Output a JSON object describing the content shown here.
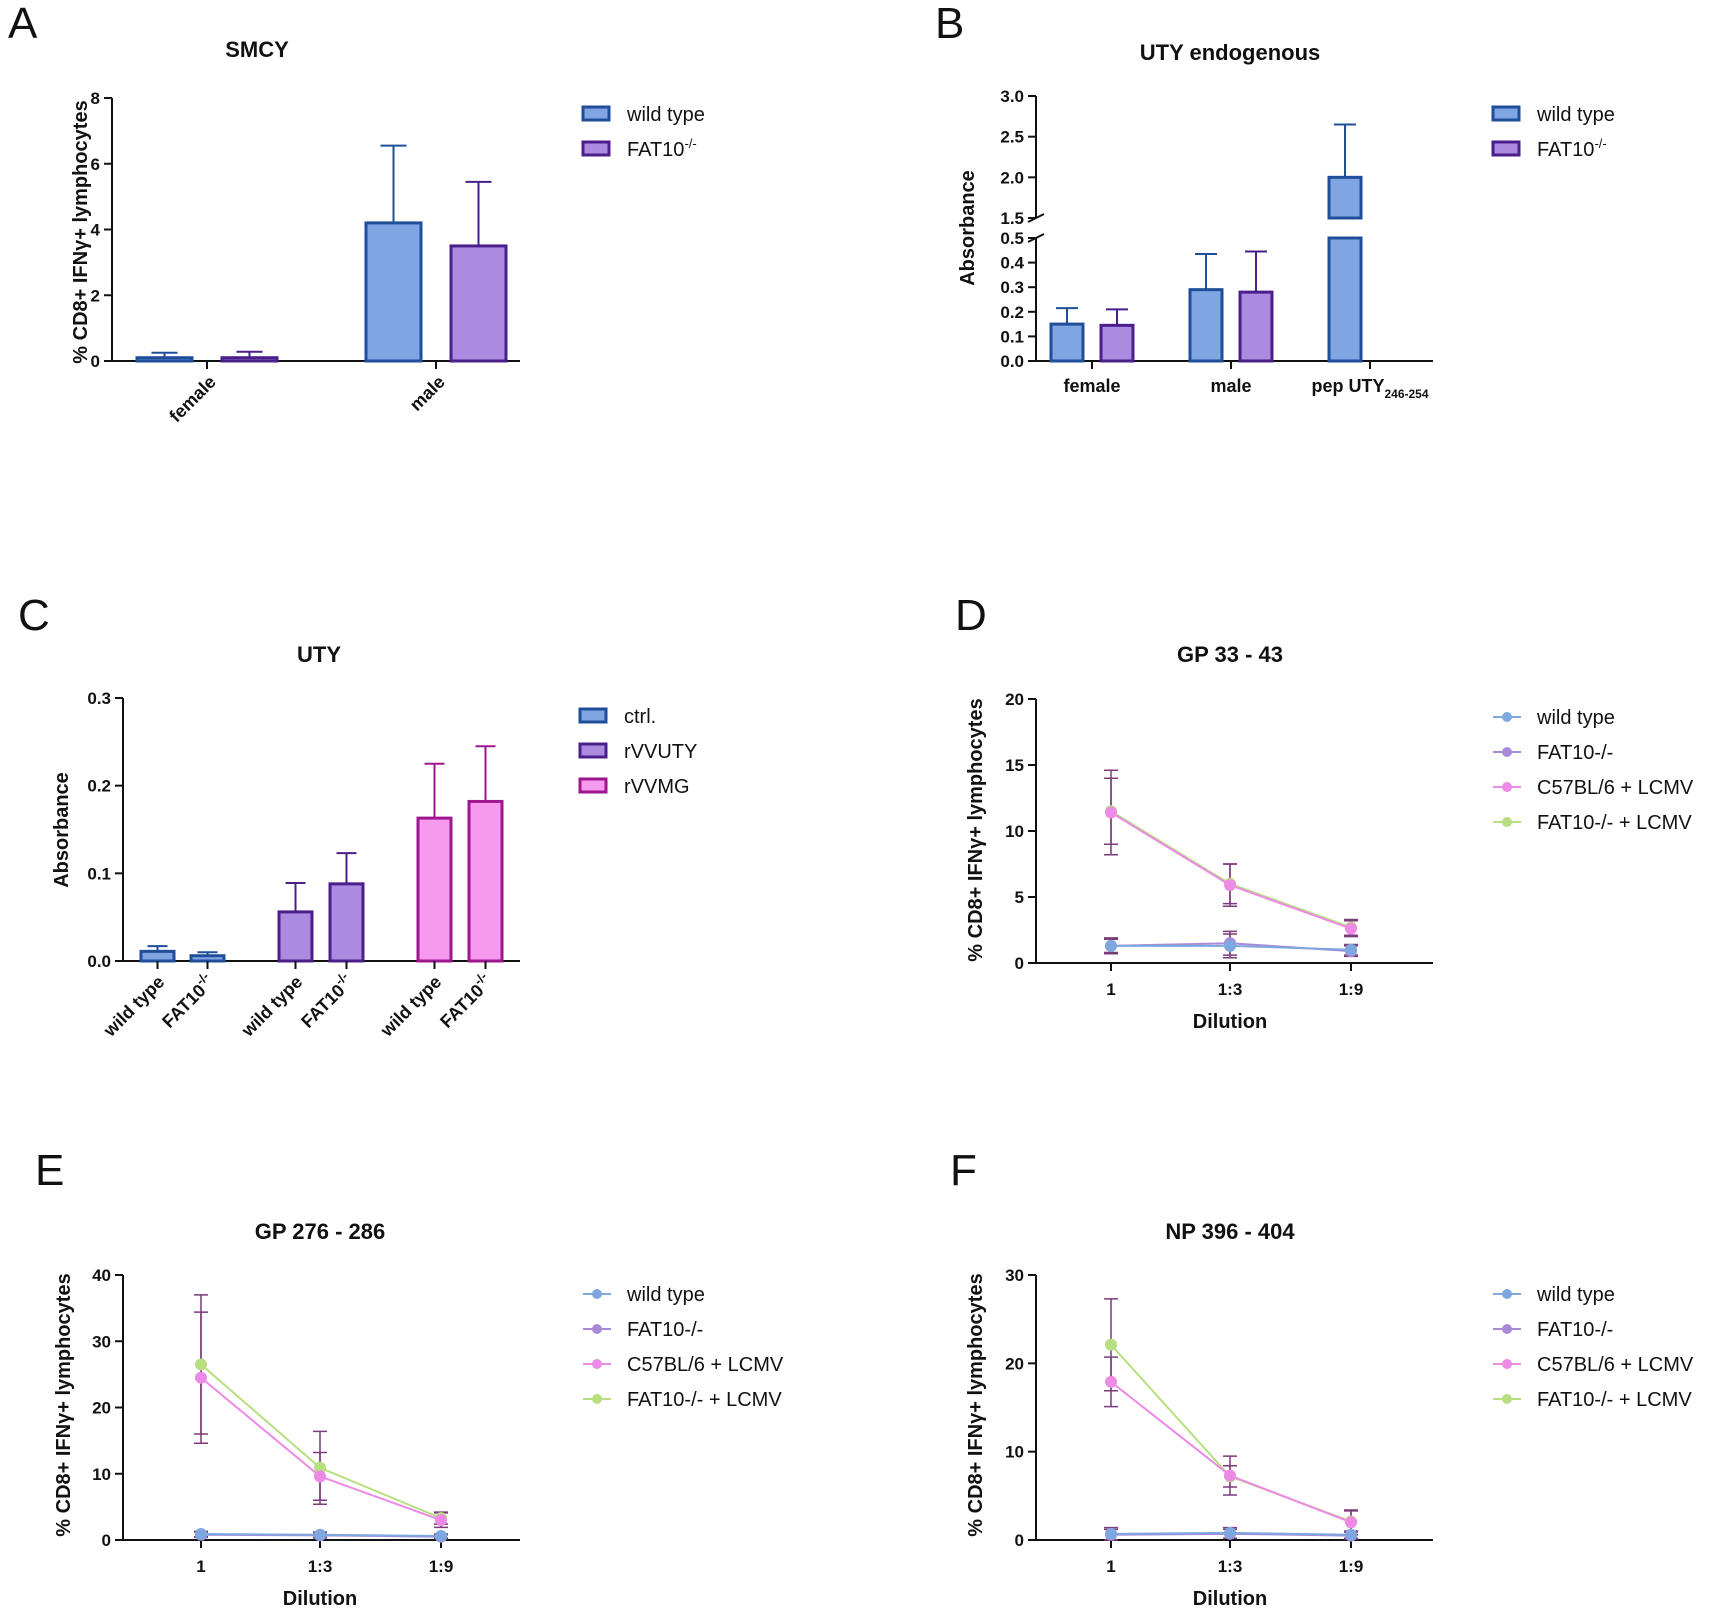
{
  "figure": {
    "letters": [
      "A",
      "B",
      "C",
      "D",
      "E",
      "F"
    ]
  },
  "colors": {
    "blue_fill": "#7fa6e3",
    "blue_edge": "#1f4e9b",
    "purple_fill": "#ab8ae0",
    "purple_edge": "#4a1f8c",
    "pink_fill": "#f59aef",
    "pink_edge": "#a0168f",
    "wt_line": "#7ea7e0",
    "fat10_line": "#a88ad8",
    "c57_line": "#ec8ae6",
    "fat10lcmv_line": "#b7df7f",
    "err_line": "#7a3c7a"
  },
  "chart_data": [
    {
      "id": "A",
      "type": "bar",
      "title": "SMCY",
      "ylabel": "% CD8+ IFNγ+ lymphocytes",
      "xlabel": "",
      "ylim": [
        0,
        8
      ],
      "yticks": [
        "0",
        "2",
        "4",
        "6",
        "8"
      ],
      "categories": [
        "female",
        "male"
      ],
      "series": [
        {
          "name": "wild type",
          "values": [
            0.1,
            4.2
          ],
          "errors": [
            0.15,
            2.35
          ]
        },
        {
          "name": "FAT10-/-",
          "values": [
            0.1,
            3.5
          ],
          "errors": [
            0.18,
            1.95
          ]
        }
      ],
      "legend": [
        {
          "label": "wild type",
          "sup": ""
        },
        {
          "label": "FAT10",
          "sup": "-/-"
        }
      ],
      "legend_position": "right"
    },
    {
      "id": "B",
      "type": "bar",
      "title": "UTY endogenous",
      "ylabel": "Absorbance",
      "xlabel": "",
      "ylim_lower": [
        0,
        0.5
      ],
      "ylim_upper": [
        1.5,
        3.0
      ],
      "yticks_lower": [
        "0.0",
        "0.1",
        "0.2",
        "0.3",
        "0.4",
        "0.5"
      ],
      "yticks_upper": [
        "1.5",
        "2.0",
        "2.5",
        "3.0"
      ],
      "categories": [
        "female",
        "male",
        "pep UTY"
      ],
      "category_sub": [
        "",
        "",
        "246-254"
      ],
      "series": [
        {
          "name": "wild type",
          "values": [
            0.15,
            0.29,
            2.0
          ],
          "errors": [
            0.065,
            0.145,
            0.65
          ]
        },
        {
          "name": "FAT10-/-",
          "values": [
            0.145,
            0.28,
            null
          ],
          "errors": [
            0.065,
            0.165,
            null
          ]
        }
      ],
      "legend": [
        {
          "label": "wild type",
          "sup": ""
        },
        {
          "label": "FAT10",
          "sup": "-/-"
        }
      ],
      "legend_position": "right"
    },
    {
      "id": "C",
      "type": "bar",
      "title": "UTY",
      "ylabel": "Absorbance",
      "xlabel": "",
      "ylim": [
        0,
        0.3
      ],
      "yticks": [
        "0.0",
        "0.1",
        "0.2",
        "0.3"
      ],
      "groups": [
        "ctrl.",
        "rVVUTY",
        "rVVMG"
      ],
      "bar_labels": [
        {
          "label": "wild type",
          "sup": ""
        },
        {
          "label": "FAT10",
          "sup": "-/-"
        },
        {
          "label": "wild type",
          "sup": ""
        },
        {
          "label": "FAT10",
          "sup": "-/-"
        },
        {
          "label": "wild type",
          "sup": ""
        },
        {
          "label": "FAT10",
          "sup": "-/-"
        }
      ],
      "values": [
        0.011,
        0.006,
        0.056,
        0.088,
        0.163,
        0.182
      ],
      "errors": [
        0.006,
        0.004,
        0.033,
        0.035,
        0.062,
        0.063
      ],
      "legend": [
        "ctrl.",
        "rVVUTY",
        "rVVMG"
      ],
      "legend_position": "right"
    },
    {
      "id": "D",
      "type": "line",
      "title": "GP 33 - 43",
      "ylabel": "% CD8+ IFNγ+ lymphocytes",
      "xlabel": "Dilution",
      "x": [
        "1",
        "1:3",
        "1:9"
      ],
      "ylim": [
        0,
        20
      ],
      "yticks": [
        "0",
        "5",
        "10",
        "15",
        "20"
      ],
      "series": [
        {
          "name": "wild type",
          "values": [
            1.3,
            1.3,
            1.0
          ],
          "errors": [
            0.5,
            0.9,
            0.4
          ]
        },
        {
          "name": "FAT10-/-",
          "values": [
            1.3,
            1.5,
            0.9
          ],
          "errors": [
            0.6,
            0.9,
            0.4
          ]
        },
        {
          "name": "C57BL/6 + LCMV",
          "values": [
            11.4,
            5.9,
            2.6
          ],
          "errors": [
            3.2,
            1.6,
            0.6
          ]
        },
        {
          "name": "FAT10-/- + LCMV",
          "values": [
            11.5,
            6.0,
            2.7
          ],
          "errors": [
            2.5,
            1.5,
            0.6
          ]
        }
      ],
      "legend_position": "right"
    },
    {
      "id": "E",
      "type": "line",
      "title": "GP 276 - 286",
      "ylabel": "% CD8+ IFNγ+ lymphocytes",
      "xlabel": "Dilution",
      "x": [
        "1",
        "1:3",
        "1:9"
      ],
      "ylim": [
        0,
        40
      ],
      "yticks": [
        "0",
        "10",
        "20",
        "30",
        "40"
      ],
      "series": [
        {
          "name": "wild type",
          "values": [
            0.9,
            0.8,
            0.6
          ],
          "errors": [
            0.4,
            0.4,
            0.3
          ]
        },
        {
          "name": "FAT10-/-",
          "values": [
            0.8,
            0.7,
            0.5
          ],
          "errors": [
            0.4,
            0.4,
            0.3
          ]
        },
        {
          "name": "C57BL/6 + LCMV",
          "values": [
            24.5,
            9.6,
            3.0
          ],
          "errors": [
            9.9,
            3.6,
            1.1
          ]
        },
        {
          "name": "FAT10-/- + LCMV",
          "values": [
            26.5,
            10.9,
            3.3
          ],
          "errors": [
            10.5,
            5.5,
            0.9
          ]
        }
      ],
      "legend_position": "right"
    },
    {
      "id": "F",
      "type": "line",
      "title": "NP 396 - 404",
      "ylabel": "% CD8+ IFNγ+ lymphocytes",
      "xlabel": "Dilution",
      "x": [
        "1",
        "1:3",
        "1:9"
      ],
      "ylim": [
        0,
        30
      ],
      "yticks": [
        "0",
        "10",
        "20",
        "30"
      ],
      "series": [
        {
          "name": "wild type",
          "values": [
            0.7,
            0.8,
            0.6
          ],
          "errors": [
            0.7,
            0.6,
            0.4
          ]
        },
        {
          "name": "FAT10-/-",
          "values": [
            0.6,
            0.7,
            0.5
          ],
          "errors": [
            0.6,
            0.5,
            0.4
          ]
        },
        {
          "name": "C57BL/6 + LCMV",
          "values": [
            17.9,
            7.3,
            2.0
          ],
          "errors": [
            2.8,
            2.2,
            1.4
          ]
        },
        {
          "name": "FAT10-/- + LCMV",
          "values": [
            22.1,
            7.2,
            2.1
          ],
          "errors": [
            5.2,
            1.2,
            1.2
          ]
        }
      ],
      "legend_position": "right"
    }
  ]
}
